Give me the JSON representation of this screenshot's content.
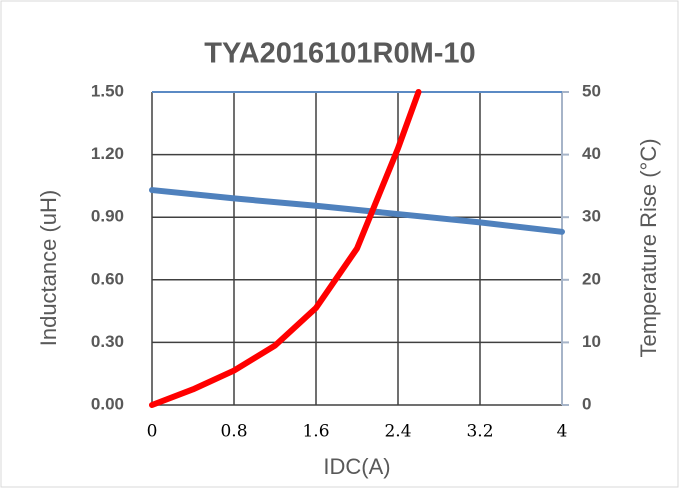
{
  "chart_data": {
    "type": "line",
    "title": "TYA2016101R0M-10",
    "x_label": "IDC(A)",
    "y_label": "Inductance (uH)",
    "y2_label": "Temperature Rise (°C)",
    "xlim": [
      0,
      4
    ],
    "xticks": [
      0,
      0.8,
      1.6,
      2.4,
      3.2,
      4
    ],
    "ylim": [
      0,
      1.5
    ],
    "yticks": [
      {
        "value": 0,
        "label": "0.00"
      },
      {
        "value": 0.3,
        "label": "0.30"
      },
      {
        "value": 0.6,
        "label": "0.60"
      },
      {
        "value": 0.9,
        "label": "0.90"
      },
      {
        "value": 1.2,
        "label": "1.20"
      },
      {
        "value": 1.5,
        "label": "1.50"
      }
    ],
    "y2lim": [
      0,
      50
    ],
    "y2ticks": [
      0,
      10,
      20,
      30,
      40,
      50
    ],
    "grid": true,
    "series": [
      {
        "color": "#4f81bd",
        "x": [
          0,
          0.8,
          1.6,
          2.4,
          3.2,
          4
        ],
        "values": [
          1.03,
          0.99,
          0.955,
          0.915,
          0.875,
          0.83
        ]
      },
      {
        "color": "#ff0000",
        "axis": "y2",
        "x": [
          0,
          0.4,
          0.8,
          1.2,
          1.6,
          2.0,
          2.2,
          2.4,
          2.6
        ],
        "values": [
          0,
          2.5,
          5.5,
          9.5,
          15.5,
          25,
          33,
          41,
          50
        ]
      }
    ]
  }
}
